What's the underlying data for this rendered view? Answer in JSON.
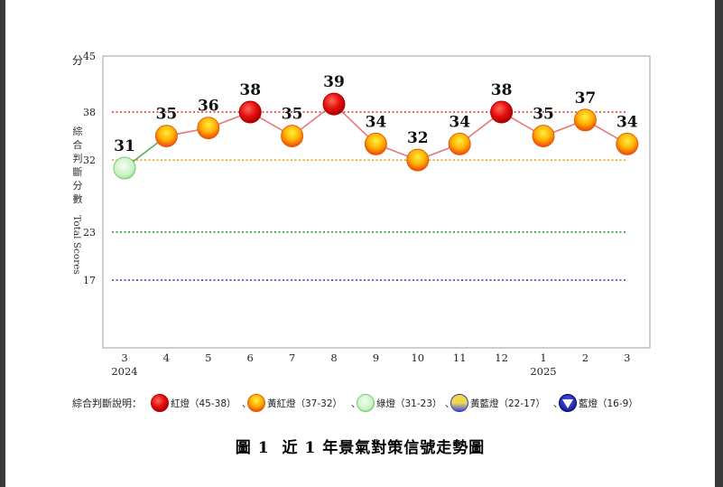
{
  "chart_data": {
    "type": "line",
    "ylabel_zh": "綜合判斷分數",
    "ylabel_en": "Total Scores",
    "yunit": "分",
    "ylim": [
      9,
      45
    ],
    "yticks": [
      45,
      38,
      32,
      23,
      17
    ],
    "categories": [
      "3",
      "4",
      "5",
      "6",
      "7",
      "8",
      "9",
      "10",
      "11",
      "12",
      "1",
      "2",
      "3"
    ],
    "year_labels": [
      {
        "index": 0,
        "label": "2024"
      },
      {
        "index": 10,
        "label": "2025"
      }
    ],
    "values": [
      31,
      35,
      36,
      38,
      35,
      39,
      34,
      32,
      34,
      38,
      35,
      37,
      34
    ],
    "thresholds": [
      {
        "value": 38,
        "color": "#e03030"
      },
      {
        "value": 32,
        "color": "#f0a020"
      },
      {
        "value": 23,
        "color": "#2e9e3e"
      },
      {
        "value": 17,
        "color": "#2a3ac0"
      }
    ],
    "grid": false
  },
  "legend": {
    "title": "綜合判斷說明：",
    "items": [
      {
        "label": "紅燈（45-38）",
        "type": "red"
      },
      {
        "label": "黃紅燈（37-32）",
        "type": "yellow-red"
      },
      {
        "label": "綠燈（31-23）",
        "type": "green"
      },
      {
        "label": "黃藍燈（22-17）",
        "type": "yellow-blue"
      },
      {
        "label": "藍燈（16-9）",
        "type": "blue"
      }
    ]
  },
  "caption": {
    "figure": "圖 1",
    "title": "近 1 年景氣對策信號走勢圖"
  }
}
